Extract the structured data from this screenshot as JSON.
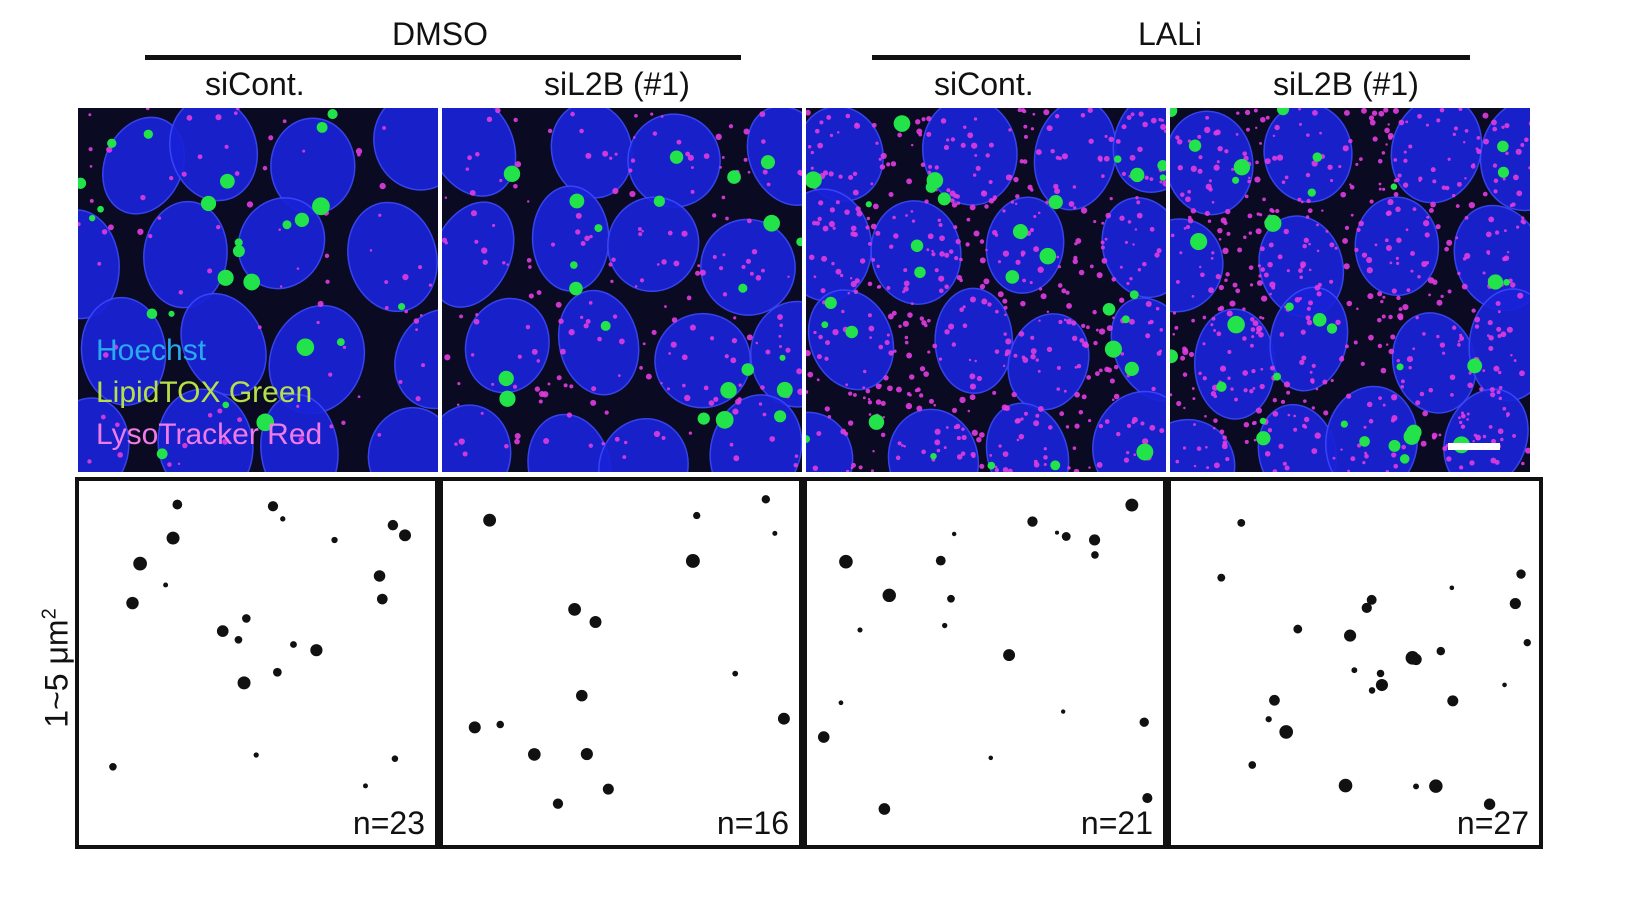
{
  "groups": {
    "dmso": "DMSO",
    "lali": "LALi"
  },
  "columns": [
    {
      "condition": "siCont.",
      "count": "n=23"
    },
    {
      "condition": "siL2B (#1)",
      "count": "n=16"
    },
    {
      "condition": "siCont.",
      "count": "n=21"
    },
    {
      "condition": "siL2B (#1)",
      "count": "n=27"
    }
  ],
  "legend": {
    "hoechst": "Hoechst",
    "lipidtox": "LipidTOX Green",
    "lysotracker": "LysoTracker Red"
  },
  "stain_colors": {
    "hoechst": "#29a9f0",
    "lipidtox": "#b6e04a",
    "lysotracker": "#f07be8",
    "nucleus": "#1a22d8",
    "lipid_droplet": "#22e34a",
    "lysosome": "#e23ce0"
  },
  "y_axis": {
    "prefix": "1~5 μm",
    "superscript": "2"
  }
}
